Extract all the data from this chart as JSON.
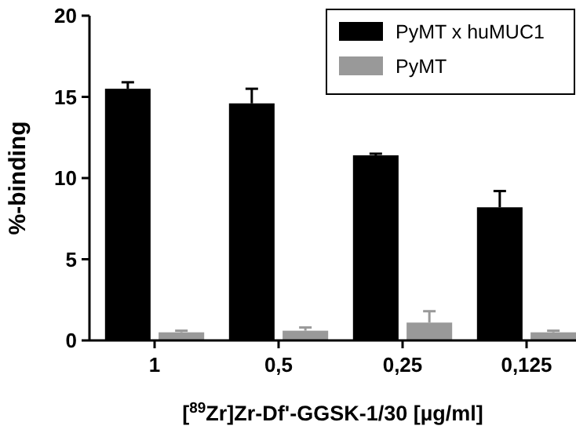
{
  "chart_data": {
    "type": "bar",
    "xlabel": "[$^{89}$Zr]Zr-Df'-GGSK-1/30 [µg/ml]",
    "ylabel": "%-binding",
    "categories": [
      "1",
      "0,5",
      "0,25",
      "0,125"
    ],
    "series": [
      {
        "name": "PyMT x huMUC1",
        "color": "#000000",
        "values": [
          15.5,
          14.6,
          11.4,
          8.2
        ],
        "errors": [
          [
            15.5,
            15.9
          ],
          [
            14.6,
            15.5
          ],
          [
            11.4,
            11.5
          ],
          [
            8.2,
            9.2
          ]
        ]
      },
      {
        "name": "PyMT",
        "color": "#999999",
        "values": [
          0.5,
          0.6,
          1.1,
          0.5
        ],
        "errors": [
          [
            0.5,
            0.6
          ],
          [
            0.6,
            0.8
          ],
          [
            1.1,
            1.8
          ],
          [
            0.5,
            0.6
          ]
        ]
      }
    ],
    "ylim": [
      0,
      20
    ],
    "yticks": [
      0,
      5,
      10,
      15,
      20
    ],
    "grid": false,
    "legend": "top right"
  }
}
